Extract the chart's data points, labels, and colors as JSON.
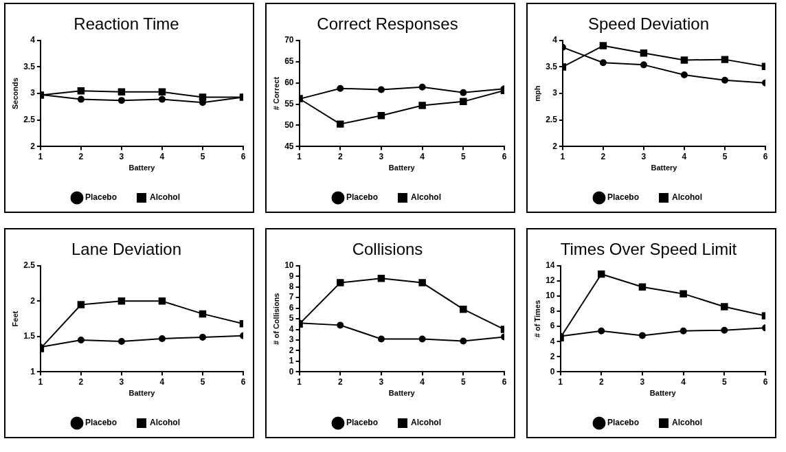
{
  "chart_data": [
    {
      "type": "line",
      "title": "Reaction Time",
      "xlabel": "Battery",
      "ylabel": "Seconds",
      "x": [
        1,
        2,
        3,
        4,
        5,
        6
      ],
      "xlim": [
        1,
        6
      ],
      "xticks": [
        1,
        2,
        3,
        4,
        5,
        6
      ],
      "ylim": [
        2,
        4
      ],
      "yticks": [
        2,
        2.5,
        3,
        3.5,
        4
      ],
      "grid": false,
      "legend": "bottom",
      "series": [
        {
          "name": "Placebo",
          "color": "#000000",
          "marker": "circle",
          "values": [
            2.98,
            2.89,
            2.87,
            2.89,
            2.83,
            2.93
          ]
        },
        {
          "name": "Alcohol",
          "color": "#000000",
          "marker": "square",
          "values": [
            2.97,
            3.05,
            3.03,
            3.03,
            2.93,
            2.93
          ]
        }
      ]
    },
    {
      "type": "line",
      "title": "Correct Responses",
      "xlabel": "Battery",
      "ylabel": "# Correct",
      "x": [
        1,
        2,
        3,
        4,
        5,
        6
      ],
      "xlim": [
        1,
        6
      ],
      "xticks": [
        1,
        2,
        3,
        4,
        5,
        6
      ],
      "ylim": [
        45,
        70
      ],
      "yticks": [
        45,
        50,
        55,
        60,
        65,
        70
      ],
      "grid": false,
      "legend": "bottom",
      "series": [
        {
          "name": "Placebo",
          "color": "#000000",
          "marker": "circle",
          "values": [
            56.2,
            58.7,
            58.4,
            59.0,
            57.7,
            58.6
          ]
        },
        {
          "name": "Alcohol",
          "color": "#000000",
          "marker": "square",
          "values": [
            56.3,
            50.3,
            52.3,
            54.7,
            55.6,
            58.2
          ]
        }
      ]
    },
    {
      "type": "line",
      "title": "Speed Deviation",
      "xlabel": "Battery",
      "ylabel": "mph",
      "x": [
        1,
        2,
        3,
        4,
        5,
        6
      ],
      "xlim": [
        1,
        6
      ],
      "xticks": [
        1,
        2,
        3,
        4,
        5,
        6
      ],
      "ylim": [
        2,
        4
      ],
      "yticks": [
        2,
        2.5,
        3,
        3.5,
        4
      ],
      "grid": false,
      "legend": "bottom",
      "series": [
        {
          "name": "Placebo",
          "color": "#000000",
          "marker": "circle",
          "values": [
            3.87,
            3.58,
            3.54,
            3.35,
            3.25,
            3.2
          ]
        },
        {
          "name": "Alcohol",
          "color": "#000000",
          "marker": "square",
          "values": [
            3.5,
            3.9,
            3.76,
            3.63,
            3.64,
            3.51
          ]
        }
      ]
    },
    {
      "type": "line",
      "title": "Lane Deviation",
      "xlabel": "Battery",
      "ylabel": "Feet",
      "x": [
        1,
        2,
        3,
        4,
        5,
        6
      ],
      "xlim": [
        1,
        6
      ],
      "xticks": [
        1,
        2,
        3,
        4,
        5,
        6
      ],
      "ylim": [
        1,
        2.5
      ],
      "yticks": [
        1,
        1.5,
        2,
        2.5
      ],
      "grid": false,
      "legend": "bottom",
      "series": [
        {
          "name": "Placebo",
          "color": "#000000",
          "marker": "circle",
          "values": [
            1.35,
            1.45,
            1.43,
            1.47,
            1.49,
            1.51
          ]
        },
        {
          "name": "Alcohol",
          "color": "#000000",
          "marker": "square",
          "values": [
            1.33,
            1.95,
            2.0,
            2.0,
            1.82,
            1.68
          ]
        }
      ]
    },
    {
      "type": "line",
      "title": "Collisions",
      "xlabel": "Battery",
      "ylabel": "# of Collisions",
      "x": [
        1,
        2,
        3,
        4,
        5,
        6
      ],
      "xlim": [
        1,
        6
      ],
      "xticks": [
        1,
        2,
        3,
        4,
        5,
        6
      ],
      "ylim": [
        0,
        10
      ],
      "yticks": [
        0,
        1,
        2,
        3,
        4,
        5,
        6,
        7,
        8,
        9,
        10
      ],
      "grid": false,
      "legend": "bottom",
      "series": [
        {
          "name": "Placebo",
          "color": "#000000",
          "marker": "circle",
          "values": [
            4.6,
            4.4,
            3.1,
            3.1,
            2.9,
            3.3
          ]
        },
        {
          "name": "Alcohol",
          "color": "#000000",
          "marker": "square",
          "values": [
            4.5,
            8.4,
            8.8,
            8.4,
            5.9,
            4.0
          ]
        }
      ]
    },
    {
      "type": "line",
      "title": "Times Over Speed Limit",
      "xlabel": "Battery",
      "ylabel": "# of Times",
      "x": [
        1,
        2,
        3,
        4,
        5,
        6
      ],
      "xlim": [
        1,
        6
      ],
      "xticks": [
        1,
        2,
        3,
        4,
        5,
        6
      ],
      "ylim": [
        0,
        14
      ],
      "yticks": [
        0,
        2,
        4,
        6,
        8,
        10,
        12,
        14
      ],
      "grid": false,
      "legend": "bottom",
      "series": [
        {
          "name": "Placebo",
          "color": "#000000",
          "marker": "circle",
          "values": [
            4.7,
            5.4,
            4.8,
            5.4,
            5.5,
            5.8
          ]
        },
        {
          "name": "Alcohol",
          "color": "#000000",
          "marker": "square",
          "values": [
            4.5,
            12.9,
            11.2,
            10.3,
            8.6,
            7.4
          ]
        }
      ]
    }
  ]
}
